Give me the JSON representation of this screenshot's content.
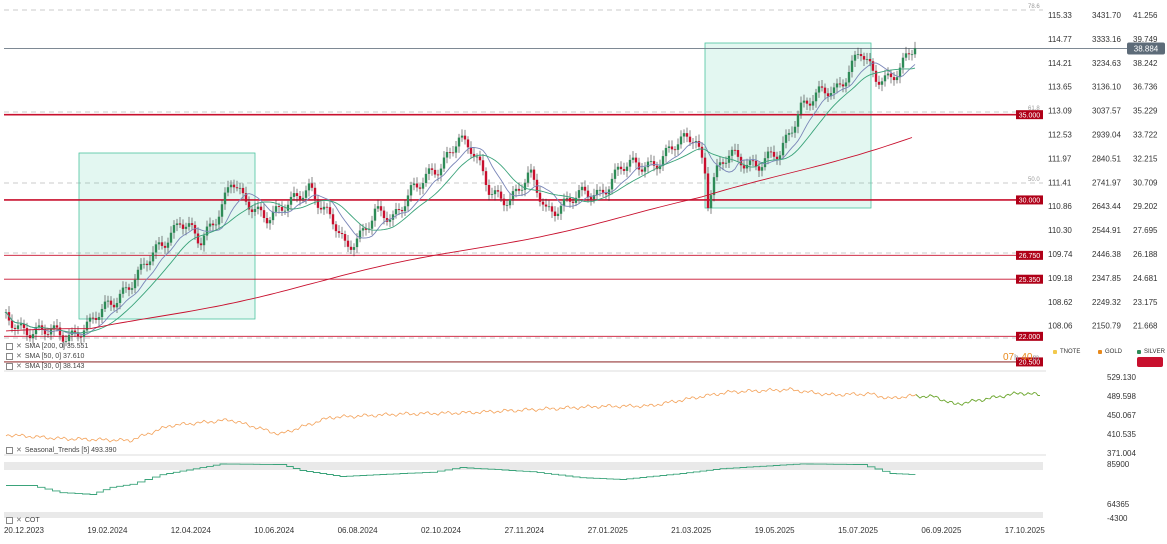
{
  "chart_data": {
    "type": "candlestick",
    "x_ticks": [
      "20.12.2023",
      "19.02.2024",
      "12.04.2024",
      "10.06.2024",
      "06.08.2024",
      "02.10.2024",
      "27.11.2024",
      "27.01.2025",
      "21.03.2025",
      "19.05.2025",
      "15.07.2025",
      "06.09.2025",
      "17.10.2025"
    ],
    "axis_left": [
      "115.33",
      "114.77",
      "114.21",
      "113.65",
      "113.09",
      "112.53",
      "111.97",
      "111.41",
      "110.86",
      "110.30",
      "109.74",
      "109.18",
      "108.62",
      "108.06"
    ],
    "axis_mid": [
      "3431.70",
      "3333.16",
      "3234.63",
      "3136.10",
      "3037.57",
      "2939.04",
      "2840.51",
      "2741.97",
      "2643.44",
      "2544.91",
      "2446.38",
      "2347.85",
      "2249.32",
      "2150.79"
    ],
    "axis_right": [
      "41.256",
      "39.749",
      "38.242",
      "36.736",
      "35.229",
      "33.722",
      "32.215",
      "30.709",
      "29.202",
      "27.695",
      "26.188",
      "24.681",
      "23.175",
      "21.668"
    ],
    "main_ylim": [
      21.668,
      41.256
    ],
    "current_price": "38.884",
    "horizontal_levels": [
      "35.000",
      "30.000",
      "26.750",
      "25.350",
      "22.000",
      "20.500"
    ],
    "fib_labels": [
      "78.6",
      "61.8",
      "50.0"
    ],
    "indicators": [
      "SMA [200, 0] 35.551",
      "SMA [50, 0] 37.610",
      "SMA [30, 0] 38.143"
    ],
    "instruments": [
      {
        "name": "TNOTE",
        "color": "#f2c94c"
      },
      {
        "name": "GOLD",
        "color": "#e8891c"
      },
      {
        "name": "SILVER",
        "color": "#2e8b57"
      }
    ],
    "timer": {
      "hours": "07",
      "h": "h",
      "minutes": "40",
      "m": "m"
    },
    "seasonal": {
      "label": "Seasonal_Trends [5] 493.390",
      "axis": [
        "529.130",
        "489.598",
        "450.067",
        "410.535",
        "371.004"
      ],
      "ylim": [
        371.004,
        529.13
      ]
    },
    "cot": {
      "label": "COT",
      "axis": [
        "85900",
        "64365",
        "-4300"
      ],
      "ylim": [
        -4300,
        85900
      ]
    }
  }
}
